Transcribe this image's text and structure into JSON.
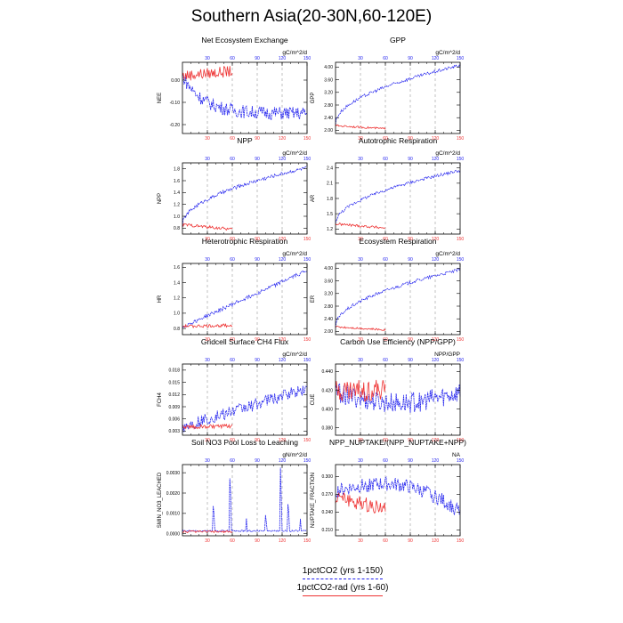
{
  "title": "Southern Asia(20-30N,60-120E)",
  "colors": {
    "series1": "#2222ee",
    "series2": "#ee3333",
    "grid": "#999999"
  },
  "legend": {
    "items": [
      {
        "label": "1pctCO2 (yrs 1-150)",
        "color": "#2222ee",
        "style": "dashed"
      },
      {
        "label": "1pctCO2-rad (yrs 1-60)",
        "color": "#ee3333",
        "style": "solid"
      }
    ]
  },
  "chart_data": [
    {
      "type": "line",
      "title": "Net Ecosystem Exchange",
      "ylabel": "NEE",
      "units": "gC/m^2/d",
      "yticks": [
        "0.00",
        "-0.10",
        "-0.20"
      ],
      "ytick_values": [
        0.0,
        -0.1,
        -0.2
      ],
      "ylim": [
        -0.24,
        0.08
      ],
      "xlim": [
        0,
        150
      ],
      "top_ticks": [
        "30",
        "60",
        "90",
        "120",
        "150"
      ],
      "bottom_ticks": [
        "30",
        "60",
        "90",
        "120",
        "150"
      ],
      "series": [
        {
          "name": "1pctCO2 (yrs 1-150)",
          "start": 0.02,
          "end": -0.15,
          "noise": 0.03,
          "years": 150,
          "shape": "exp"
        },
        {
          "name": "1pctCO2-rad (yrs 1-60)",
          "start": 0.02,
          "end": 0.04,
          "noise": 0.025,
          "years": 60,
          "shape": "lin"
        }
      ]
    },
    {
      "type": "line",
      "title": "GPP",
      "ylabel": "GPP",
      "units": "gC/m^2/d",
      "yticks": [
        "2.00",
        "2.40",
        "2.80",
        "3.20",
        "3.60",
        "4.00"
      ],
      "ytick_values": [
        2.0,
        2.4,
        2.8,
        3.2,
        3.6,
        4.0
      ],
      "ylim": [
        1.9,
        4.15
      ],
      "xlim": [
        0,
        150
      ],
      "top_ticks": [
        "30",
        "60",
        "90",
        "120",
        "150"
      ],
      "bottom_ticks": [
        "30",
        "60",
        "90",
        "120",
        "150"
      ],
      "series": [
        {
          "name": "1pctCO2 (yrs 1-150)",
          "start": 2.2,
          "end": 4.05,
          "noise": 0.05,
          "years": 150,
          "shape": "sqrt"
        },
        {
          "name": "1pctCO2-rad (yrs 1-60)",
          "start": 2.15,
          "end": 2.05,
          "noise": 0.03,
          "years": 60,
          "shape": "lin"
        }
      ]
    },
    {
      "type": "line",
      "title": "NPP",
      "ylabel": "NPP",
      "units": "gC/m^2/d",
      "yticks": [
        "0.8",
        "1.0",
        "1.2",
        "1.4",
        "1.6",
        "1.8"
      ],
      "ytick_values": [
        0.8,
        1.0,
        1.2,
        1.4,
        1.6,
        1.8
      ],
      "ylim": [
        0.7,
        1.9
      ],
      "xlim": [
        0,
        150
      ],
      "top_ticks": [
        "30",
        "60",
        "90",
        "120",
        "150"
      ],
      "bottom_ticks": [
        "30",
        "60",
        "90",
        "120",
        "150"
      ],
      "series": [
        {
          "name": "1pctCO2 (yrs 1-150)",
          "start": 0.85,
          "end": 1.82,
          "noise": 0.03,
          "years": 150,
          "shape": "sqrt"
        },
        {
          "name": "1pctCO2-rad (yrs 1-60)",
          "start": 0.86,
          "end": 0.78,
          "noise": 0.025,
          "years": 60,
          "shape": "lin"
        }
      ]
    },
    {
      "type": "line",
      "title": "Autotrophic Respiration",
      "ylabel": "AR",
      "units": "gC/m^2/d",
      "yticks": [
        "1.2",
        "1.5",
        "1.8",
        "2.1",
        "2.4"
      ],
      "ytick_values": [
        1.2,
        1.5,
        1.8,
        2.1,
        2.4
      ],
      "ylim": [
        1.1,
        2.5
      ],
      "xlim": [
        0,
        150
      ],
      "top_ticks": [
        "30",
        "60",
        "90",
        "120",
        "150"
      ],
      "bottom_ticks": [
        "30",
        "60",
        "90",
        "120",
        "150"
      ],
      "series": [
        {
          "name": "1pctCO2 (yrs 1-150)",
          "start": 1.3,
          "end": 2.35,
          "noise": 0.03,
          "years": 150,
          "shape": "sqrt"
        },
        {
          "name": "1pctCO2-rad (yrs 1-60)",
          "start": 1.3,
          "end": 1.22,
          "noise": 0.025,
          "years": 60,
          "shape": "lin"
        }
      ]
    },
    {
      "type": "line",
      "title": "Heterotrophic Respiration",
      "ylabel": "HR",
      "units": "gC/m^2/d",
      "yticks": [
        "0.8",
        "1.0",
        "1.2",
        "1.4",
        "1.6"
      ],
      "ytick_values": [
        0.8,
        1.0,
        1.2,
        1.4,
        1.6
      ],
      "ylim": [
        0.72,
        1.65
      ],
      "xlim": [
        0,
        150
      ],
      "top_ticks": [
        "30",
        "60",
        "90",
        "120",
        "150"
      ],
      "bottom_ticks": [
        "30",
        "60",
        "90",
        "120",
        "150"
      ],
      "series": [
        {
          "name": "1pctCO2 (yrs 1-150)",
          "start": 0.82,
          "end": 1.56,
          "noise": 0.025,
          "years": 150,
          "shape": "lin"
        },
        {
          "name": "1pctCO2-rad (yrs 1-60)",
          "start": 0.83,
          "end": 0.84,
          "noise": 0.02,
          "years": 60,
          "shape": "lin"
        }
      ]
    },
    {
      "type": "line",
      "title": "Ecosystem Respiration",
      "ylabel": "ER",
      "units": "gC/m^2/d",
      "yticks": [
        "2.00",
        "2.40",
        "2.80",
        "3.20",
        "3.60",
        "4.00"
      ],
      "ytick_values": [
        2.0,
        2.4,
        2.8,
        3.2,
        3.6,
        4.0
      ],
      "ylim": [
        1.9,
        4.15
      ],
      "xlim": [
        0,
        150
      ],
      "top_ticks": [
        "30",
        "60",
        "90",
        "120",
        "150"
      ],
      "bottom_ticks": [
        "30",
        "60",
        "90",
        "120",
        "150"
      ],
      "series": [
        {
          "name": "1pctCO2 (yrs 1-150)",
          "start": 2.15,
          "end": 3.95,
          "noise": 0.05,
          "years": 150,
          "shape": "sqrt"
        },
        {
          "name": "1pctCO2-rad (yrs 1-60)",
          "start": 2.15,
          "end": 2.05,
          "noise": 0.03,
          "years": 60,
          "shape": "lin"
        }
      ]
    },
    {
      "type": "line",
      "title": "Gridcell Surface CH4 Flux",
      "ylabel": "FCH4",
      "units": "gC/m^2/d",
      "yticks": [
        "0.003",
        "0.006",
        "0.009",
        "0.012",
        "0.015",
        "0.018"
      ],
      "ytick_values": [
        0.003,
        0.006,
        0.009,
        0.012,
        0.015,
        0.018
      ],
      "ylim": [
        0.002,
        0.0195
      ],
      "xlim": [
        0,
        150
      ],
      "top_ticks": [
        "30",
        "60",
        "90",
        "120",
        "150"
      ],
      "bottom_ticks": [
        "30",
        "60",
        "90",
        "120",
        "150"
      ],
      "series": [
        {
          "name": "1pctCO2 (yrs 1-150)",
          "start": 0.004,
          "end": 0.0135,
          "noise": 0.0015,
          "years": 150,
          "shape": "lin"
        },
        {
          "name": "1pctCO2-rad (yrs 1-60)",
          "start": 0.004,
          "end": 0.0042,
          "noise": 0.0005,
          "years": 60,
          "shape": "lin"
        }
      ]
    },
    {
      "type": "line",
      "title": "Carbon Use Efficiency (NPP/GPP)",
      "ylabel": "CUE",
      "units": "NPP/GPP",
      "yticks": [
        "0.380",
        "0.400",
        "0.420",
        "0.440"
      ],
      "ytick_values": [
        0.38,
        0.4,
        0.42,
        0.44
      ],
      "ylim": [
        0.372,
        0.448
      ],
      "xlim": [
        0,
        150
      ],
      "top_ticks": [
        "30",
        "60",
        "90",
        "120",
        "150"
      ],
      "bottom_ticks": [
        "30",
        "60",
        "90",
        "120",
        "150"
      ],
      "series": [
        {
          "name": "1pctCO2 (yrs 1-150)",
          "start": 0.418,
          "end": 0.422,
          "noise": 0.011,
          "years": 150,
          "shape": "dip"
        },
        {
          "name": "1pctCO2-rad (yrs 1-60)",
          "start": 0.42,
          "end": 0.42,
          "noise": 0.012,
          "years": 60,
          "shape": "lin"
        }
      ]
    },
    {
      "type": "line",
      "title": "Soil NO3 Pool Loss to Leaching",
      "ylabel": "SMIN_NO3_LEACHED",
      "units": "gN/m^2/d",
      "yticks": [
        "0.0000",
        "0.0010",
        "0.0020",
        "0.0030"
      ],
      "ytick_values": [
        0.0,
        0.001,
        0.002,
        0.003
      ],
      "ylim": [
        -0.0001,
        0.0034
      ],
      "xlim": [
        0,
        150
      ],
      "top_ticks": [
        "30",
        "60",
        "90",
        "120",
        "150"
      ],
      "bottom_ticks": [
        "30",
        "60",
        "90",
        "120",
        "150"
      ],
      "series": [
        {
          "name": "1pctCO2 (yrs 1-150)",
          "start": 0.0001,
          "end": 0.0001,
          "noise": 8e-05,
          "years": 150,
          "shape": "spiky"
        },
        {
          "name": "1pctCO2-rad (yrs 1-60)",
          "start": 0.0001,
          "end": 0.0001,
          "noise": 5e-05,
          "years": 60,
          "shape": "lin"
        }
      ]
    },
    {
      "type": "line",
      "title": "NPP_NUPTAKE/(NPP_NUPTAKE+NPP)",
      "ylabel": "NUPTAKE_FRACTION",
      "units": "NA",
      "yticks": [
        "0.210",
        "0.240",
        "0.270",
        "0.300"
      ],
      "ytick_values": [
        0.21,
        0.24,
        0.27,
        0.3
      ],
      "ylim": [
        0.2,
        0.32
      ],
      "xlim": [
        0,
        150
      ],
      "top_ticks": [
        "30",
        "60",
        "90",
        "120",
        "150"
      ],
      "bottom_ticks": [
        "30",
        "60",
        "90",
        "120",
        "150"
      ],
      "series": [
        {
          "name": "1pctCO2 (yrs 1-150)",
          "start": 0.275,
          "end": 0.24,
          "noise": 0.012,
          "years": 150,
          "shape": "hump"
        },
        {
          "name": "1pctCO2-rad (yrs 1-60)",
          "start": 0.265,
          "end": 0.245,
          "noise": 0.012,
          "years": 60,
          "shape": "lin"
        }
      ]
    }
  ]
}
